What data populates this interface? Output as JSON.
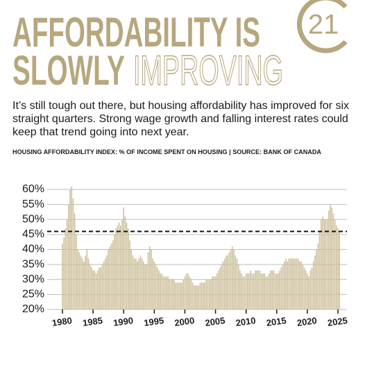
{
  "logo": "21",
  "headline": {
    "line1": "AFFORDABILITY IS",
    "line2_solid": "SLOWLY",
    "line2_outline": "IMPROVING"
  },
  "intro": "It’s still tough out there, but housing affordability has improved for six straight quarters. Strong wage growth and falling interest rates could keep that trend going into next year.",
  "chart_data": {
    "type": "bar",
    "title": "HOUSING AFFORDABILITY INDEX: % OF INCOME SPENT ON HOUSING | SOURCE: BANK OF CANADA",
    "color": "#cdc09c",
    "categories": [
      "1980",
      null,
      null,
      null,
      null,
      null,
      null,
      null,
      null,
      null,
      null,
      null,
      null,
      null,
      null,
      null,
      null,
      null,
      null,
      null,
      "1985",
      null,
      null,
      null,
      null,
      null,
      null,
      null,
      null,
      null,
      null,
      null,
      null,
      null,
      null,
      null,
      null,
      null,
      null,
      null,
      "1990",
      null,
      null,
      null,
      null,
      null,
      null,
      null,
      null,
      null,
      null,
      null,
      null,
      null,
      null,
      null,
      null,
      null,
      null,
      null,
      "1995",
      null,
      null,
      null,
      null,
      null,
      null,
      null,
      null,
      null,
      null,
      null,
      null,
      null,
      null,
      null,
      null,
      null,
      null,
      null,
      "2000",
      null,
      null,
      null,
      null,
      null,
      null,
      null,
      null,
      null,
      null,
      null,
      null,
      null,
      null,
      null,
      null,
      null,
      null,
      null,
      "2005",
      null,
      null,
      null,
      null,
      null,
      null,
      null,
      null,
      null,
      null,
      null,
      null,
      null,
      null,
      null,
      null,
      null,
      null,
      null,
      "2010",
      null,
      null,
      null,
      null,
      null,
      null,
      null,
      null,
      null,
      null,
      null,
      null,
      null,
      null,
      null,
      null,
      null,
      null,
      null,
      "2015",
      null,
      null,
      null,
      null,
      null,
      null,
      null,
      null,
      null,
      null,
      null,
      null,
      null,
      null,
      null,
      null,
      null,
      null,
      null,
      "2020",
      null,
      null,
      null,
      null,
      null,
      null,
      null,
      null,
      null,
      null,
      null,
      null,
      null,
      null,
      null,
      null,
      null,
      null,
      null,
      "2025",
      null
    ],
    "values": [
      42,
      44,
      47,
      50,
      55,
      60,
      61,
      57,
      52,
      45,
      40,
      39,
      38,
      37,
      36,
      38,
      40,
      37,
      35,
      34,
      33,
      33,
      32,
      33,
      34,
      34,
      35,
      36,
      37,
      38,
      40,
      41,
      42,
      43,
      45,
      47,
      48,
      49,
      48,
      50,
      54,
      51,
      49,
      47,
      43,
      40,
      38,
      37,
      37,
      36,
      37,
      38,
      37,
      36,
      35,
      35,
      39,
      41,
      40,
      37,
      36,
      35,
      34,
      33,
      32,
      32,
      31,
      31,
      31,
      31,
      30,
      30,
      30,
      30,
      29,
      29,
      29,
      29,
      29,
      30,
      31,
      32,
      32,
      31,
      30,
      29,
      28,
      28,
      28,
      28,
      29,
      29,
      29,
      29,
      30,
      30,
      30,
      30,
      31,
      31,
      31,
      32,
      33,
      34,
      35,
      36,
      37,
      38,
      38,
      39,
      40,
      41,
      40,
      38,
      37,
      35,
      33,
      32,
      31,
      31,
      32,
      32,
      32,
      33,
      32,
      32,
      33,
      33,
      33,
      33,
      32,
      32,
      32,
      31,
      31,
      32,
      33,
      33,
      33,
      32,
      32,
      32,
      33,
      34,
      35,
      36,
      37,
      36,
      37,
      37,
      37,
      37,
      37,
      37,
      37,
      36,
      36,
      35,
      34,
      33,
      32,
      31,
      33,
      34,
      36,
      38,
      40,
      42,
      46,
      50,
      51,
      50,
      50,
      50,
      53,
      55,
      54,
      52,
      50,
      48,
      47,
      46
    ],
    "reference_line": 46,
    "ylim": [
      20,
      61
    ],
    "yticks": [
      {
        "value": 20,
        "label": "20%"
      },
      {
        "value": 25,
        "label": "25%"
      },
      {
        "value": 30,
        "label": "30%"
      },
      {
        "value": 35,
        "label": "35%"
      },
      {
        "value": 40,
        "label": "40%"
      },
      {
        "value": 45,
        "label": "45%"
      },
      {
        "value": 50,
        "label": "50%"
      },
      {
        "value": 55,
        "label": "55%"
      },
      {
        "value": 60,
        "label": "60%"
      }
    ],
    "grid": true
  }
}
